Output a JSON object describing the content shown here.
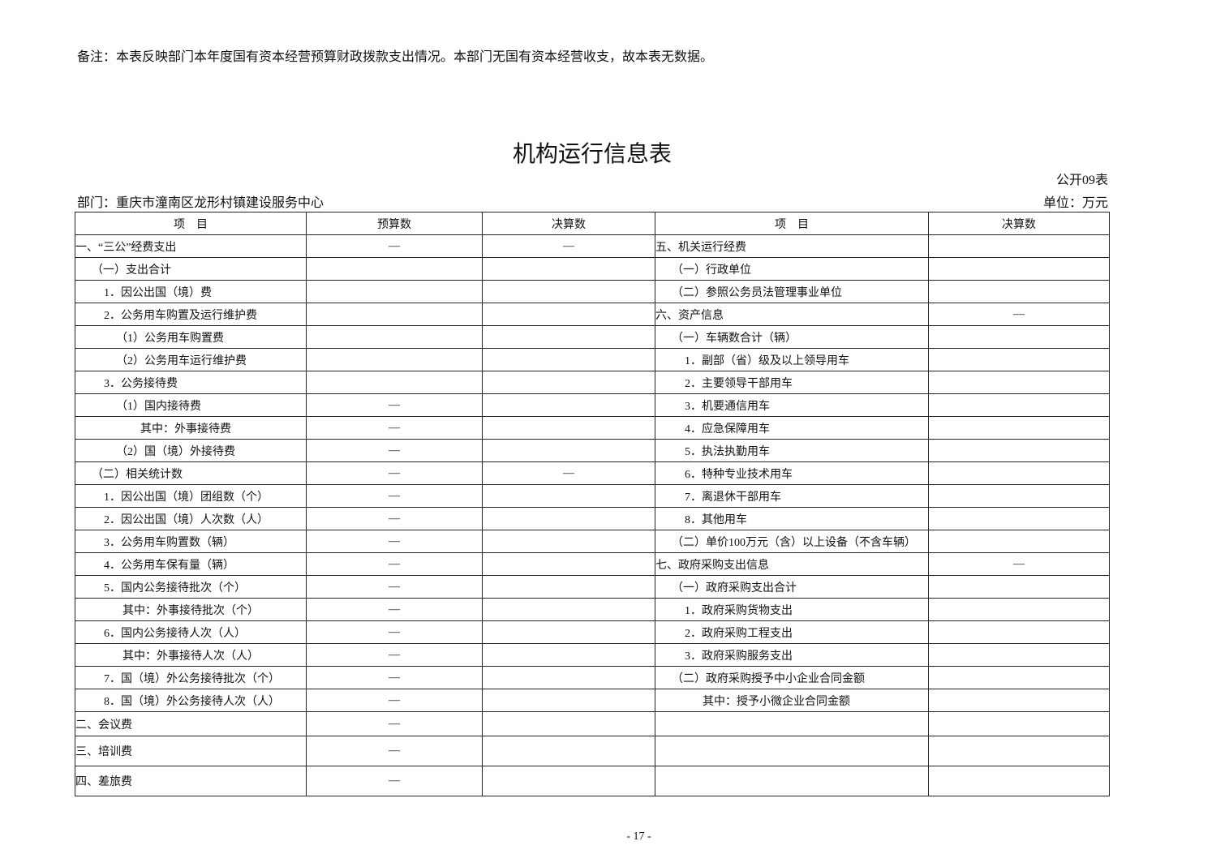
{
  "note": "备注：本表反映部门本年度国有资本经营预算财政拨款支出情况。本部门无国有资本经营收支，故本表无数据。",
  "title": "机构运行信息表",
  "form_no": "公开09表",
  "department": "部门：重庆市潼南区龙形村镇建设服务中心",
  "unit": "单位：万元",
  "table": {
    "header": [
      "项　目",
      "预算数",
      "决算数",
      "项　目",
      "决算数"
    ],
    "rows": [
      [
        "一、“三公”经费支出",
        "—",
        "—",
        "五、机关运行经费",
        null
      ],
      [
        "（一）支出合计",
        null,
        null,
        "（一）行政单位",
        null
      ],
      [
        "1．因公出国（境）费",
        null,
        null,
        "（二）参照公务员法管理事业单位",
        null
      ],
      [
        "2．公务用车购置及运行维护费",
        null,
        null,
        "六、资产信息",
        "—"
      ],
      [
        "（1）公务用车购置费",
        null,
        null,
        "（一）车辆数合计（辆）",
        null
      ],
      [
        "（2）公务用车运行维护费",
        null,
        null,
        "1．副部（省）级及以上领导用车",
        null
      ],
      [
        "3．公务接待费",
        null,
        null,
        "2．主要领导干部用车",
        null
      ],
      [
        "（1）国内接待费",
        "—",
        null,
        "3．机要通信用车",
        null
      ],
      [
        "其中：外事接待费",
        "—",
        null,
        "4．应急保障用车",
        null
      ],
      [
        "（2）国（境）外接待费",
        "—",
        null,
        "5．执法执勤用车",
        null
      ],
      [
        "（二）相关统计数",
        "—",
        "—",
        "6．特种专业技术用车",
        null
      ],
      [
        "1．因公出国（境）团组数（个）",
        "—",
        null,
        "7．离退休干部用车",
        null
      ],
      [
        "2．因公出国（境）人次数（人）",
        "—",
        null,
        "8．其他用车",
        null
      ],
      [
        "3．公务用车购置数（辆）",
        "—",
        null,
        "（二）单价100万元（含）以上设备（不含车辆）",
        null
      ],
      [
        "4．公务用车保有量（辆）",
        "—",
        null,
        "七、政府采购支出信息",
        "—"
      ],
      [
        "5．国内公务接待批次（个）",
        "—",
        null,
        "（一）政府采购支出合计",
        null
      ],
      [
        "其中：外事接待批次（个）",
        "—",
        null,
        "1．政府采购货物支出",
        null
      ],
      [
        "6．国内公务接待人次（人）",
        "—",
        null,
        "2．政府采购工程支出",
        null
      ],
      [
        "其中：外事接待人次（人）",
        "—",
        null,
        "3．政府采购服务支出",
        null
      ],
      [
        "7．国（境）外公务接待批次（个）",
        "—",
        null,
        "（二）政府采购授予中小企业合同金额",
        null
      ],
      [
        "8．国（境）外公务接待人次（人）",
        "—",
        null,
        "其中：授予小微企业合同金额",
        null
      ],
      [
        "二、会议费",
        "—",
        null,
        null,
        null
      ],
      [
        "三、培训费",
        "—",
        null,
        null,
        null
      ],
      [
        "四、差旅费",
        "—",
        null,
        null,
        null
      ]
    ]
  },
  "page_number": "- 17 -"
}
